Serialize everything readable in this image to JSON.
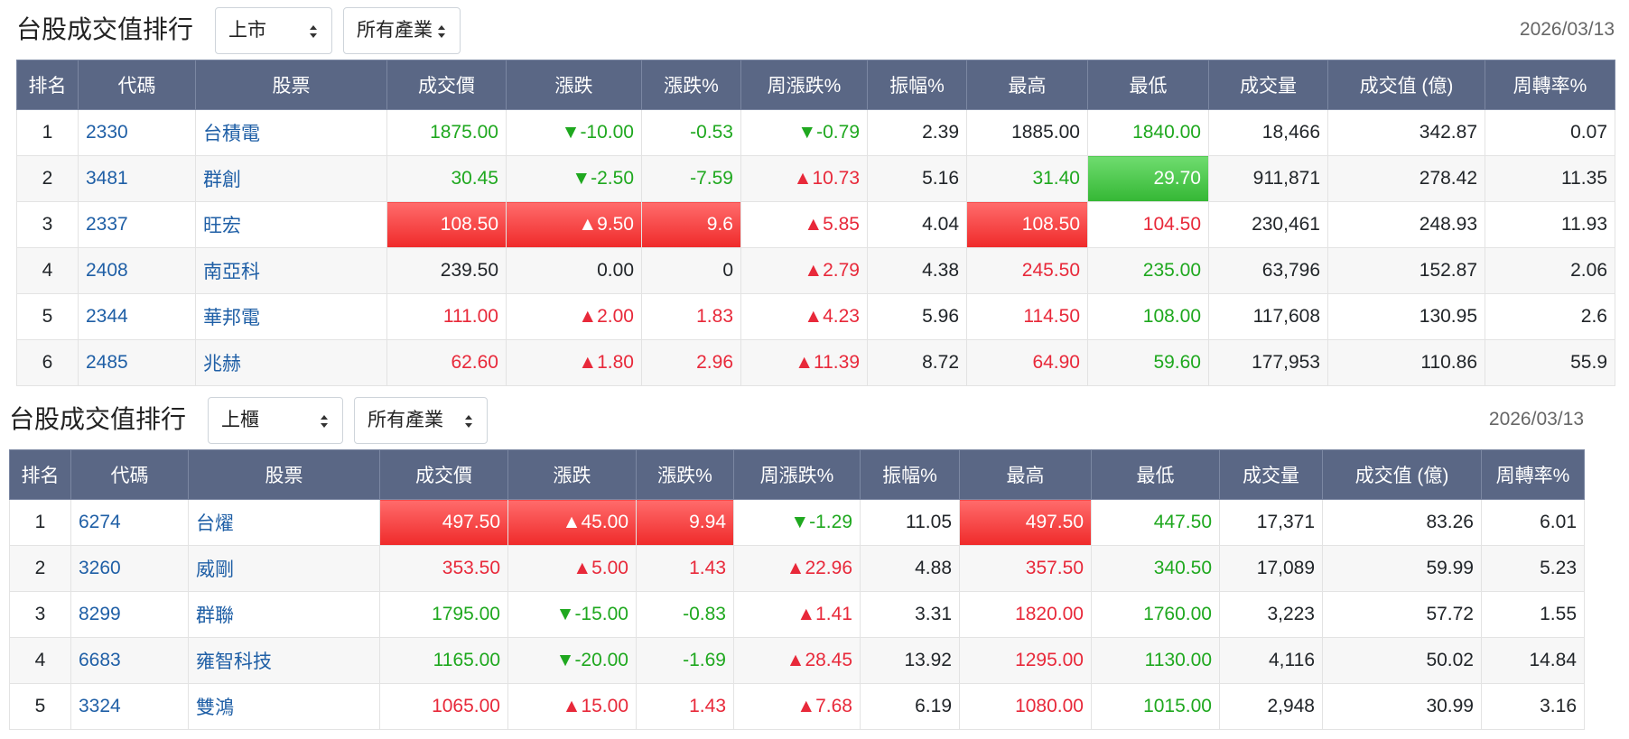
{
  "panels": [
    {
      "title": "台股成交值排行",
      "market": "上市",
      "industry": "所有產業",
      "date": "2026/03/13",
      "columns": [
        "排名",
        "代碼",
        "股票",
        "成交價",
        "漲跌",
        "漲跌%",
        "周漲跌%",
        "振幅%",
        "最高",
        "最低",
        "成交量",
        "成交值 (億)",
        "周轉率%"
      ],
      "rows": [
        {
          "rank": "1",
          "code": "2330",
          "name": "台積電",
          "price": "1875.00",
          "price_dir": "down",
          "change": "▼-10.00",
          "change_dir": "down",
          "pct": "-0.53",
          "pct_dir": "down",
          "week": "▼-0.79",
          "week_dir": "down",
          "amp": "2.39",
          "high": "1885.00",
          "high_dir": "flat",
          "low": "1840.00",
          "low_dir": "down",
          "volume": "18,466",
          "value": "342.87",
          "turnover": "0.07"
        },
        {
          "rank": "2",
          "code": "3481",
          "name": "群創",
          "price": "30.45",
          "price_dir": "down",
          "change": "▼-2.50",
          "change_dir": "down",
          "pct": "-7.59",
          "pct_dir": "down",
          "week": "▲10.73",
          "week_dir": "up",
          "amp": "5.16",
          "high": "31.40",
          "high_dir": "down",
          "low": "29.70",
          "low_dir": "hi-down",
          "volume": "911,871",
          "value": "278.42",
          "turnover": "11.35"
        },
        {
          "rank": "3",
          "code": "2337",
          "name": "旺宏",
          "price": "108.50",
          "price_dir": "hi-up",
          "change": "▲9.50",
          "change_dir": "hi-up",
          "pct": "9.6",
          "pct_dir": "hi-up",
          "week": "▲5.85",
          "week_dir": "up",
          "amp": "4.04",
          "high": "108.50",
          "high_dir": "hi-up",
          "low": "104.50",
          "low_dir": "up",
          "volume": "230,461",
          "value": "248.93",
          "turnover": "11.93"
        },
        {
          "rank": "4",
          "code": "2408",
          "name": "南亞科",
          "price": "239.50",
          "price_dir": "flat",
          "change": "0.00",
          "change_dir": "flat",
          "pct": "0",
          "pct_dir": "flat",
          "week": "▲2.79",
          "week_dir": "up",
          "amp": "4.38",
          "high": "245.50",
          "high_dir": "up",
          "low": "235.00",
          "low_dir": "down",
          "volume": "63,796",
          "value": "152.87",
          "turnover": "2.06"
        },
        {
          "rank": "5",
          "code": "2344",
          "name": "華邦電",
          "price": "111.00",
          "price_dir": "up",
          "change": "▲2.00",
          "change_dir": "up",
          "pct": "1.83",
          "pct_dir": "up",
          "week": "▲4.23",
          "week_dir": "up",
          "amp": "5.96",
          "high": "114.50",
          "high_dir": "up",
          "low": "108.00",
          "low_dir": "down",
          "volume": "117,608",
          "value": "130.95",
          "turnover": "2.6"
        },
        {
          "rank": "6",
          "code": "2485",
          "name": "兆赫",
          "price": "62.60",
          "price_dir": "up",
          "change": "▲1.80",
          "change_dir": "up",
          "pct": "2.96",
          "pct_dir": "up",
          "week": "▲11.39",
          "week_dir": "up",
          "amp": "8.72",
          "high": "64.90",
          "high_dir": "up",
          "low": "59.60",
          "low_dir": "down",
          "volume": "177,953",
          "value": "110.86",
          "turnover": "55.9"
        }
      ]
    },
    {
      "title": "台股成交值排行",
      "market": "上櫃",
      "industry": "所有產業",
      "date": "2026/03/13",
      "columns": [
        "排名",
        "代碼",
        "股票",
        "成交價",
        "漲跌",
        "漲跌%",
        "周漲跌%",
        "振幅%",
        "最高",
        "最低",
        "成交量",
        "成交值 (億)",
        "周轉率%"
      ],
      "rows": [
        {
          "rank": "1",
          "code": "6274",
          "name": "台燿",
          "price": "497.50",
          "price_dir": "hi-up",
          "change": "▲45.00",
          "change_dir": "hi-up",
          "pct": "9.94",
          "pct_dir": "hi-up",
          "week": "▼-1.29",
          "week_dir": "down",
          "amp": "11.05",
          "high": "497.50",
          "high_dir": "hi-up",
          "low": "447.50",
          "low_dir": "down",
          "volume": "17,371",
          "value": "83.26",
          "turnover": "6.01"
        },
        {
          "rank": "2",
          "code": "3260",
          "name": "威剛",
          "price": "353.50",
          "price_dir": "up",
          "change": "▲5.00",
          "change_dir": "up",
          "pct": "1.43",
          "pct_dir": "up",
          "week": "▲22.96",
          "week_dir": "up",
          "amp": "4.88",
          "high": "357.50",
          "high_dir": "up",
          "low": "340.50",
          "low_dir": "down",
          "volume": "17,089",
          "value": "59.99",
          "turnover": "5.23"
        },
        {
          "rank": "3",
          "code": "8299",
          "name": "群聯",
          "price": "1795.00",
          "price_dir": "down",
          "change": "▼-15.00",
          "change_dir": "down",
          "pct": "-0.83",
          "pct_dir": "down",
          "week": "▲1.41",
          "week_dir": "up",
          "amp": "3.31",
          "high": "1820.00",
          "high_dir": "up",
          "low": "1760.00",
          "low_dir": "down",
          "volume": "3,223",
          "value": "57.72",
          "turnover": "1.55"
        },
        {
          "rank": "4",
          "code": "6683",
          "name": "雍智科技",
          "price": "1165.00",
          "price_dir": "down",
          "change": "▼-20.00",
          "change_dir": "down",
          "pct": "-1.69",
          "pct_dir": "down",
          "week": "▲28.45",
          "week_dir": "up",
          "amp": "13.92",
          "high": "1295.00",
          "high_dir": "up",
          "low": "1130.00",
          "low_dir": "down",
          "volume": "4,116",
          "value": "50.02",
          "turnover": "14.84"
        },
        {
          "rank": "5",
          "code": "3324",
          "name": "雙鴻",
          "price": "1065.00",
          "price_dir": "up",
          "change": "▲15.00",
          "change_dir": "up",
          "pct": "1.43",
          "pct_dir": "up",
          "week": "▲7.68",
          "week_dir": "up",
          "amp": "6.19",
          "high": "1080.00",
          "high_dir": "up",
          "low": "1015.00",
          "low_dir": "down",
          "volume": "2,948",
          "value": "30.99",
          "turnover": "3.16"
        }
      ]
    }
  ]
}
